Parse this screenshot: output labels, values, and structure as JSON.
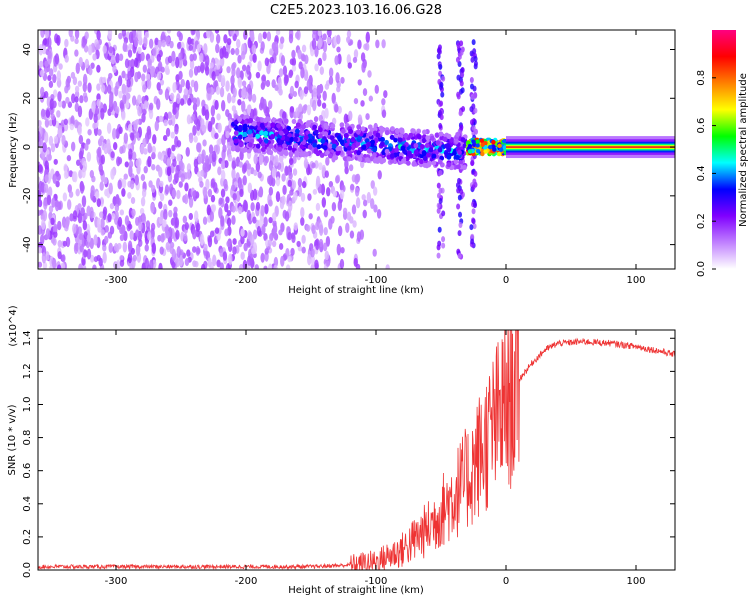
{
  "title": "C2E5.2023.103.16.06.G28",
  "chart_data": [
    {
      "type": "heatmap",
      "xlabel": "Height of straight line (km)",
      "ylabel": "Frequency (Hz)",
      "xlim": [
        -360,
        130
      ],
      "ylim": [
        -50,
        48
      ],
      "xticks": [
        -300,
        -200,
        -100,
        0,
        100
      ],
      "yticks": [
        -40,
        -20,
        0,
        20,
        40
      ],
      "colorbar": {
        "label": "Normalized spectral amplitude",
        "range": [
          0,
          1
        ],
        "ticks": [
          0.0,
          0.2,
          0.4,
          0.6,
          0.8
        ],
        "tick_labels": [
          "0.0",
          "0.2",
          "0.4",
          "0.6",
          "0.8"
        ],
        "colors": [
          "#ffffff",
          "#c080ff",
          "#8000ff",
          "#0000ff",
          "#00ffff",
          "#00ff00",
          "#ffff00",
          "#ff8000",
          "#ff0000",
          "#ff0080"
        ]
      },
      "features": [
        {
          "x_range": [
            -360,
            -130
          ],
          "freq_center": 0,
          "freq_spread": 48,
          "amplitude": 0.15,
          "note": "broadband noise"
        },
        {
          "x_range": [
            -210,
            -30
          ],
          "freq_center_start": 6,
          "freq_center_end": -2,
          "amplitude": 0.35
        },
        {
          "x_range": [
            -30,
            0
          ],
          "freq_center": 0,
          "amplitude": 0.5
        },
        {
          "x_range": [
            0,
            130
          ],
          "freq_center": 0,
          "amplitude": 0.9,
          "note": "narrow carrier line"
        }
      ]
    },
    {
      "type": "line",
      "xlabel": "Height of straight line (km)",
      "ylabel": "SNR (10 * v/v)",
      "y_multiplier": "(x10^4)",
      "xlim": [
        -360,
        130
      ],
      "ylim": [
        0,
        1.45
      ],
      "xticks": [
        -300,
        -200,
        -100,
        0,
        100
      ],
      "yticks": [
        0.0,
        0.2,
        0.4,
        0.6,
        0.8,
        1.0,
        1.2,
        1.4
      ],
      "ytick_labels": [
        "0.0",
        "0.2",
        "0.4",
        "0.6",
        "0.8",
        "1.0",
        "1.2",
        "1.4"
      ],
      "color": "#ee3333",
      "x": [
        -360,
        -300,
        -250,
        -200,
        -150,
        -120,
        -100,
        -80,
        -60,
        -50,
        -40,
        -30,
        -20,
        -10,
        0,
        10,
        20,
        30,
        40,
        60,
        80,
        100,
        120,
        130
      ],
      "y": [
        0.02,
        0.02,
        0.02,
        0.02,
        0.02,
        0.03,
        0.05,
        0.12,
        0.25,
        0.35,
        0.45,
        0.55,
        0.7,
        0.85,
        1.0,
        1.15,
        1.25,
        1.33,
        1.37,
        1.38,
        1.37,
        1.35,
        1.32,
        1.3
      ]
    }
  ]
}
